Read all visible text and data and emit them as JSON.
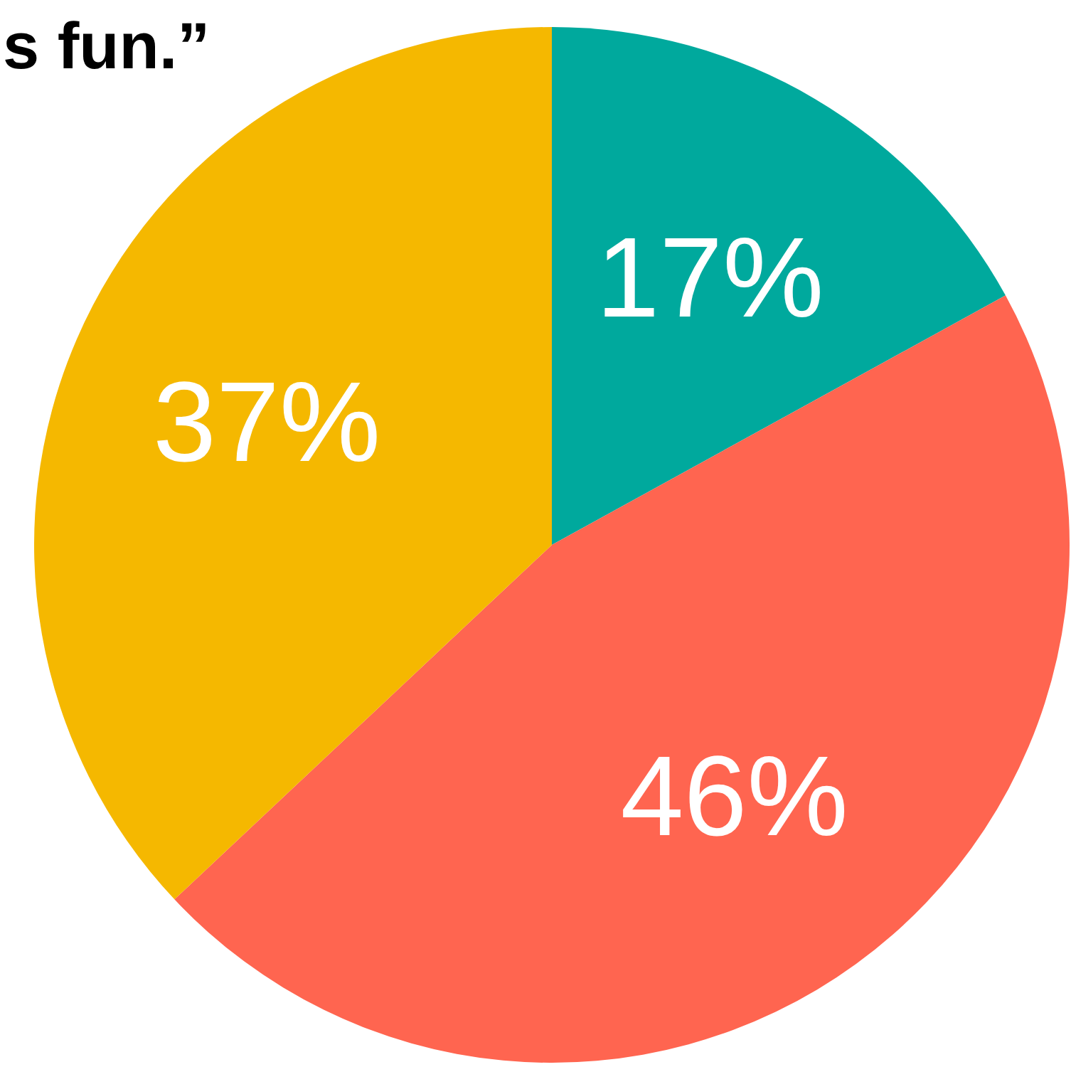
{
  "chart_data": {
    "type": "pie",
    "title": "s fun.”",
    "categories": [
      null,
      null,
      null
    ],
    "values": [
      17,
      46,
      37
    ],
    "colors": [
      "#00a99d",
      "#ff6550",
      "#f5b800"
    ],
    "value_labels": [
      "17%",
      "46%",
      "37%"
    ]
  }
}
